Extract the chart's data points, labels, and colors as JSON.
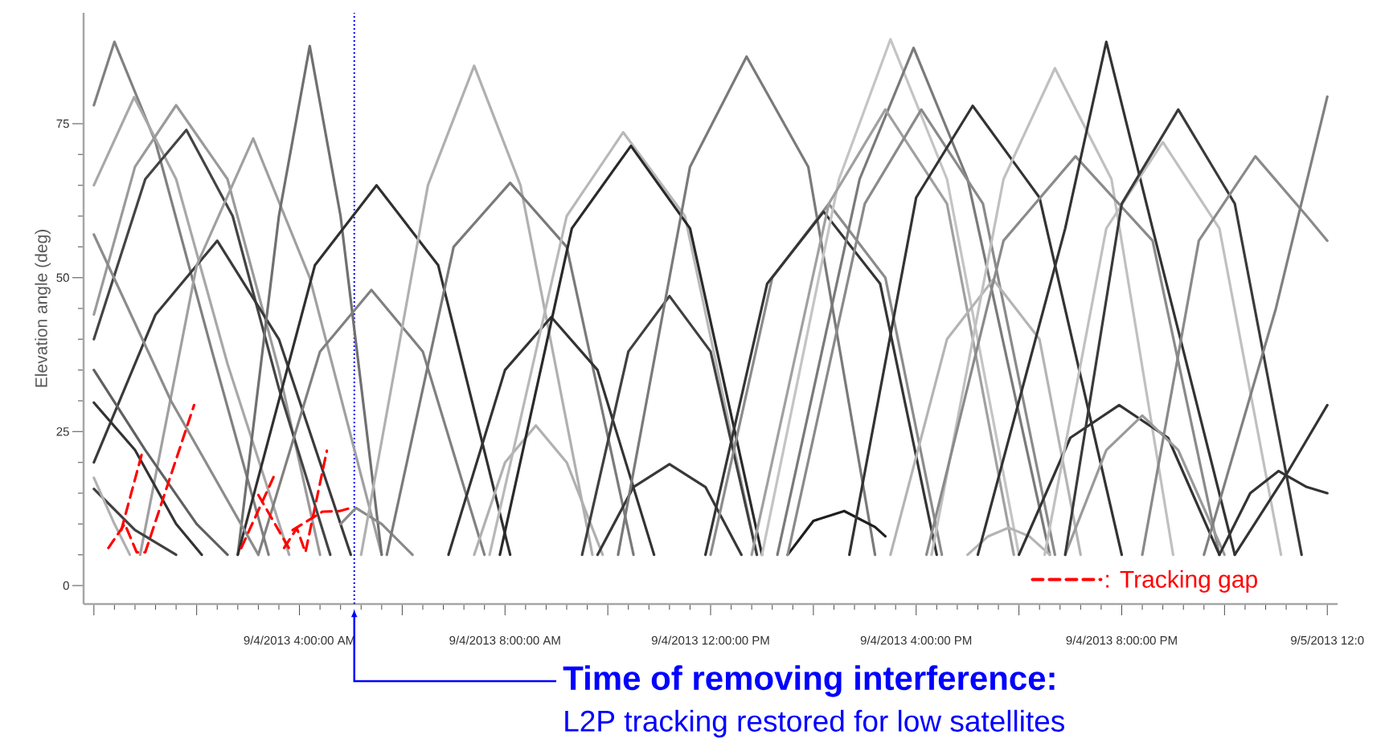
{
  "chart_data": {
    "type": "line",
    "ylabel": "Elevation angle (deg)",
    "xlim": [
      "2013-09-03T23:48",
      "2013-09-05T00:12"
    ],
    "ylim": [
      -3,
      93
    ],
    "xticks": [
      {
        "value": "2013-09-04T00:00",
        "label": null
      },
      {
        "value": "2013-09-04T02:00",
        "label": null
      },
      {
        "value": "2013-09-04T04:00",
        "label": "9/4/2013 4:00:00 AM"
      },
      {
        "value": "2013-09-04T06:00",
        "label": null
      },
      {
        "value": "2013-09-04T08:00",
        "label": "9/4/2013 8:00:00 AM"
      },
      {
        "value": "2013-09-04T10:00",
        "label": null
      },
      {
        "value": "2013-09-04T12:00",
        "label": "9/4/2013 12:00:00 PM"
      },
      {
        "value": "2013-09-04T14:00",
        "label": null
      },
      {
        "value": "2013-09-04T16:00",
        "label": "9/4/2013 4:00:00 PM"
      },
      {
        "value": "2013-09-04T18:00",
        "label": null
      },
      {
        "value": "2013-09-04T20:00",
        "label": "9/4/2013 8:00:00 PM"
      },
      {
        "value": "2013-09-04T22:00",
        "label": null
      },
      {
        "value": "2013-09-05T00:00",
        "label": "9/5/2013 12:0"
      }
    ],
    "yticks": [
      0,
      25,
      50,
      75
    ],
    "legend": "bottom right",
    "line_style": "solid",
    "ref_lines": [
      {
        "axis": "x",
        "value": "2013-09-04T05:04",
        "color": "#0000ff",
        "line_style": "dotted"
      }
    ],
    "annotations": [
      "Time of removing interference:",
      "L2P tracking restored for low satellites"
    ],
    "series": [
      {
        "color": "#808080",
        "x": [
          "2013-09-04T00:00",
          "2013-09-04T00:24",
          "2013-09-04T01:12",
          "2013-09-04T02:18",
          "2013-09-04T03:24"
        ],
        "values": [
          78,
          88.3,
          72,
          38,
          5
        ]
      },
      {
        "color": "#a8a8a8",
        "x": [
          "2013-09-04T00:00",
          "2013-09-04T00:47",
          "2013-09-04T01:36",
          "2013-09-04T02:36",
          "2013-09-04T03:48"
        ],
        "values": [
          65,
          79.3,
          66,
          36,
          5
        ]
      },
      {
        "color": "#9a9a9a",
        "x": [
          "2013-09-04T00:00",
          "2013-09-04T00:48",
          "2013-09-04T01:36",
          "2013-09-04T02:36",
          "2013-09-04T03:36",
          "2013-09-04T04:24"
        ],
        "values": [
          44,
          68,
          78,
          66,
          35,
          5
        ]
      },
      {
        "color": "#444444",
        "x": [
          "2013-09-04T00:00",
          "2013-09-04T01:00",
          "2013-09-04T01:48",
          "2013-09-04T02:42",
          "2013-09-04T03:36",
          "2013-09-04T04:36"
        ],
        "values": [
          40,
          66,
          74,
          60,
          32,
          5
        ]
      },
      {
        "color": "#3a3a3a",
        "x": [
          "2013-09-04T00:00",
          "2013-09-04T01:12",
          "2013-09-04T02:24",
          "2013-09-04T03:36",
          "2013-09-04T05:00"
        ],
        "values": [
          20,
          44,
          56,
          40,
          5
        ]
      },
      {
        "color": "#a0a0a0",
        "x": [
          "2013-09-04T00:54",
          "2013-09-04T02:00",
          "2013-09-04T03:06",
          "2013-09-04T04:12",
          "2013-09-04T05:36"
        ],
        "values": [
          5,
          52,
          72.6,
          50,
          5
        ]
      },
      {
        "color": "#707070",
        "x": [
          "2013-09-04T02:48",
          "2013-09-04T03:36",
          "2013-09-04T04:12",
          "2013-09-04T04:48",
          "2013-09-04T05:36"
        ],
        "values": [
          5,
          60,
          87.6,
          60,
          5
        ]
      },
      {
        "color": "#303030",
        "x": [
          "2013-09-04T02:48",
          "2013-09-04T04:18",
          "2013-09-04T05:30",
          "2013-09-04T06:42",
          "2013-09-04T08:06"
        ],
        "values": [
          5,
          52,
          65,
          52,
          5
        ]
      },
      {
        "color": "#808080",
        "x": [
          "2013-09-04T03:12",
          "2013-09-04T04:24",
          "2013-09-04T05:24",
          "2013-09-04T06:24",
          "2013-09-04T07:36"
        ],
        "values": [
          5,
          38,
          48,
          38,
          5
        ]
      },
      {
        "color": "#8a8a8a",
        "x": [
          "2013-09-04T04:48",
          "2013-09-04T05:06",
          "2013-09-04T05:36",
          "2013-09-04T06:12"
        ],
        "values": [
          10,
          12.6,
          10,
          5
        ]
      },
      {
        "color": "#333333",
        "x": [
          "2013-09-04T00:00",
          "2013-09-04T00:48",
          "2013-09-04T01:36",
          "2013-09-04T02:06"
        ],
        "values": [
          29.7,
          22,
          10,
          5
        ]
      },
      {
        "color": "#404040",
        "x": [
          "2013-09-04T00:00",
          "2013-09-04T00:48",
          "2013-09-04T01:36"
        ],
        "values": [
          15.7,
          9,
          5
        ]
      },
      {
        "color": "#606060",
        "x": [
          "2013-09-04T00:00",
          "2013-09-04T01:00",
          "2013-09-04T02:00",
          "2013-09-04T02:36"
        ],
        "values": [
          35,
          22,
          10,
          5
        ]
      },
      {
        "color": "#b0b0b0",
        "x": [
          "2013-09-04T00:00",
          "2013-09-04T00:24",
          "2013-09-04T00:42"
        ],
        "values": [
          17.5,
          10,
          5
        ]
      },
      {
        "color": "#8c8c8c",
        "x": [
          "2013-09-04T00:00",
          "2013-09-04T01:30",
          "2013-09-04T03:12"
        ],
        "values": [
          57,
          30,
          5
        ]
      },
      {
        "color": "#b0b0b0",
        "x": [
          "2013-09-04T05:12",
          "2013-09-04T06:30",
          "2013-09-04T07:24",
          "2013-09-04T08:18",
          "2013-09-04T09:42"
        ],
        "values": [
          5,
          65,
          84.4,
          65,
          5
        ]
      },
      {
        "color": "#7a7a7a",
        "x": [
          "2013-09-04T05:42",
          "2013-09-04T07:00",
          "2013-09-04T08:06",
          "2013-09-04T09:12",
          "2013-09-04T10:30"
        ],
        "values": [
          5,
          55,
          65.4,
          55,
          5
        ]
      },
      {
        "color": "#333333",
        "x": [
          "2013-09-04T06:54",
          "2013-09-04T08:00",
          "2013-09-04T08:54",
          "2013-09-04T09:48",
          "2013-09-04T10:54"
        ],
        "values": [
          5,
          35,
          43.6,
          35,
          5
        ]
      },
      {
        "color": "#b0b0b0",
        "x": [
          "2013-09-04T07:24",
          "2013-09-04T08:00",
          "2013-09-04T08:36",
          "2013-09-04T09:12",
          "2013-09-04T09:54"
        ],
        "values": [
          5,
          20,
          26,
          20,
          5
        ]
      },
      {
        "color": "#b8b8b8",
        "x": [
          "2013-09-04T07:42",
          "2013-09-04T09:12",
          "2013-09-04T10:18",
          "2013-09-04T11:30",
          "2013-09-04T12:54"
        ],
        "values": [
          5,
          60,
          73.6,
          60,
          5
        ]
      },
      {
        "color": "#2a2a2a",
        "x": [
          "2013-09-04T07:54",
          "2013-09-04T09:18",
          "2013-09-04T10:27",
          "2013-09-04T11:36",
          "2013-09-04T13:00"
        ],
        "values": [
          5,
          58,
          71.4,
          58,
          5
        ]
      },
      {
        "color": "#404040",
        "x": [
          "2013-09-04T09:30",
          "2013-09-04T10:24",
          "2013-09-04T11:12",
          "2013-09-04T12:00",
          "2013-09-04T12:54"
        ],
        "values": [
          5,
          38,
          47,
          38,
          5
        ]
      },
      {
        "color": "#383838",
        "x": [
          "2013-09-04T09:48",
          "2013-09-04T10:30",
          "2013-09-04T11:12",
          "2013-09-04T11:54",
          "2013-09-04T12:36"
        ],
        "values": [
          5,
          16,
          19.7,
          16,
          5
        ]
      },
      {
        "color": "#7a7a7a",
        "x": [
          "2013-09-04T10:12",
          "2013-09-04T11:36",
          "2013-09-04T12:42",
          "2013-09-04T13:54",
          "2013-09-04T15:12"
        ],
        "values": [
          5,
          68,
          85.9,
          68,
          5
        ]
      },
      {
        "color": "#8c8c8c",
        "x": [
          "2013-09-04T12:00",
          "2013-09-04T13:12",
          "2013-09-04T14:18",
          "2013-09-04T15:24",
          "2013-09-04T16:30"
        ],
        "values": [
          5,
          50,
          62,
          50,
          5
        ]
      },
      {
        "color": "#353535",
        "x": [
          "2013-09-04T11:54",
          "2013-09-04T13:06",
          "2013-09-04T14:12",
          "2013-09-04T15:18",
          "2013-09-04T16:24"
        ],
        "values": [
          5,
          49,
          60.7,
          49,
          5
        ]
      },
      {
        "color": "#1e1e1e",
        "x": [
          "2013-09-04T13:30",
          "2013-09-04T14:00",
          "2013-09-04T14:36",
          "2013-09-04T15:12",
          "2013-09-04T15:24"
        ],
        "values": [
          5,
          10.5,
          12.1,
          9.5,
          8
        ]
      },
      {
        "color": "#c4c4c4",
        "x": [
          "2013-09-04T13:00",
          "2013-09-04T14:30",
          "2013-09-04T15:30",
          "2013-09-04T16:36",
          "2013-09-04T18:00"
        ],
        "values": [
          5,
          66,
          88.7,
          66,
          5
        ]
      },
      {
        "color": "#7a7a7a",
        "x": [
          "2013-09-04T13:18",
          "2013-09-04T14:54",
          "2013-09-04T15:57",
          "2013-09-04T17:00",
          "2013-09-04T18:36"
        ],
        "values": [
          5,
          66,
          87.3,
          66,
          5
        ]
      },
      {
        "color": "#a0a0a0",
        "x": [
          "2013-09-04T12:48",
          "2013-09-04T14:18",
          "2013-09-04T15:24",
          "2013-09-04T16:36",
          "2013-09-04T17:54"
        ],
        "values": [
          5,
          62,
          77.3,
          62,
          5
        ]
      },
      {
        "color": "#8a8a8a",
        "x": [
          "2013-09-04T13:30",
          "2013-09-04T15:00",
          "2013-09-04T16:06",
          "2013-09-04T17:18",
          "2013-09-04T18:42"
        ],
        "values": [
          5,
          62,
          77.3,
          62,
          5
        ]
      },
      {
        "color": "#333333",
        "x": [
          "2013-09-04T14:42",
          "2013-09-04T16:00",
          "2013-09-04T17:06",
          "2013-09-04T18:24",
          "2013-09-04T20:00"
        ],
        "values": [
          5,
          63,
          77.9,
          63,
          5
        ]
      },
      {
        "color": "#b4b4b4",
        "x": [
          "2013-09-04T15:30",
          "2013-09-04T16:36",
          "2013-09-04T17:30",
          "2013-09-04T18:24",
          "2013-09-04T19:12"
        ],
        "values": [
          5,
          40,
          49.7,
          40,
          5
        ]
      },
      {
        "color": "#b4b4b4",
        "x": [
          "2013-09-04T17:00",
          "2013-09-04T17:24",
          "2013-09-04T17:48",
          "2013-09-04T18:12",
          "2013-09-04T18:36"
        ],
        "values": [
          5,
          8,
          9.4,
          8,
          5
        ]
      },
      {
        "color": "#c0c0c0",
        "x": [
          "2013-09-04T16:18",
          "2013-09-04T17:42",
          "2013-09-04T18:42",
          "2013-09-04T19:48",
          "2013-09-04T21:00"
        ],
        "values": [
          5,
          66,
          84,
          66,
          5
        ]
      },
      {
        "color": "#8a8a8a",
        "x": [
          "2013-09-04T16:12",
          "2013-09-04T17:42",
          "2013-09-04T19:06",
          "2013-09-04T20:36",
          "2013-09-04T21:54"
        ],
        "values": [
          5,
          56,
          69.7,
          56,
          5
        ]
      },
      {
        "color": "#333333",
        "x": [
          "2013-09-04T17:12",
          "2013-09-04T18:54",
          "2013-09-04T19:42",
          "2013-09-04T20:36",
          "2013-09-04T22:12"
        ],
        "values": [
          5,
          58,
          88.3,
          58,
          5
        ]
      },
      {
        "color": "#333333",
        "x": [
          "2013-09-04T18:00",
          "2013-09-04T19:00",
          "2013-09-04T19:57",
          "2013-09-04T20:54",
          "2013-09-04T21:54"
        ],
        "values": [
          5,
          24,
          29.3,
          24,
          5
        ]
      },
      {
        "color": "#9a9a9a",
        "x": [
          "2013-09-04T18:54",
          "2013-09-04T19:42",
          "2013-09-04T20:24",
          "2013-09-04T21:06",
          "2013-09-04T22:00"
        ],
        "values": [
          5,
          22,
          27.6,
          22,
          5
        ]
      },
      {
        "color": "#c0c0c0",
        "x": [
          "2013-09-04T18:30",
          "2013-09-04T19:42",
          "2013-09-04T20:48",
          "2013-09-04T21:54",
          "2013-09-04T23:06"
        ],
        "values": [
          5,
          58,
          72,
          58,
          5
        ]
      },
      {
        "color": "#3a3a3a",
        "x": [
          "2013-09-04T18:54",
          "2013-09-04T20:00",
          "2013-09-04T21:06",
          "2013-09-04T22:12",
          "2013-09-04T23:30"
        ],
        "values": [
          5,
          62,
          77.3,
          62,
          5
        ]
      },
      {
        "color": "#8a8a8a",
        "x": [
          "2013-09-04T20:24",
          "2013-09-04T21:30",
          "2013-09-04T22:36",
          "2013-09-04T23:36",
          "2013-09-05T00:00"
        ],
        "values": [
          5,
          56,
          69.7,
          60,
          56
        ]
      },
      {
        "color": "#333333",
        "x": [
          "2013-09-04T21:54",
          "2013-09-04T22:30",
          "2013-09-04T23:03",
          "2013-09-04T23:36",
          "2013-09-05T00:00"
        ],
        "values": [
          5,
          15,
          18.6,
          16,
          15
        ]
      },
      {
        "color": "#333333",
        "x": [
          "2013-09-04T22:12",
          "2013-09-04T23:12",
          "2013-09-05T00:00"
        ],
        "values": [
          5,
          18,
          29.3
        ]
      },
      {
        "color": "#808080",
        "x": [
          "2013-09-04T21:36",
          "2013-09-04T23:00",
          "2013-09-05T00:00"
        ],
        "values": [
          5,
          45,
          79.4
        ]
      },
      {
        "name": ": Tracking gap",
        "color": "#ff0000",
        "line_style": "dashed",
        "x": [
          "2013-09-04T00:17",
          "2013-09-04T00:36",
          "2013-09-04T00:50",
          "2013-09-04T01:00",
          "2013-09-04T01:57"
        ],
        "values": [
          6.1,
          10,
          5.4,
          5.4,
          29.3
        ]
      },
      {
        "color": "#ff0000",
        "line_style": "dashed",
        "x": [
          "2013-09-04T00:32",
          "2013-09-04T00:57"
        ],
        "values": [
          9,
          21.9
        ]
      },
      {
        "color": "#ff0000",
        "line_style": "dashed",
        "x": [
          "2013-09-04T02:52",
          "2013-09-04T03:32"
        ],
        "values": [
          6.1,
          18.3
        ]
      },
      {
        "color": "#ff0000",
        "line_style": "dashed",
        "x": [
          "2013-09-04T03:42",
          "2013-09-04T03:57",
          "2013-09-04T04:07",
          "2013-09-04T04:32"
        ],
        "values": [
          6.1,
          9.3,
          5.4,
          21.9
        ]
      },
      {
        "color": "#ff0000",
        "line_style": "dashed",
        "x": [
          "2013-09-04T03:12",
          "2013-09-04T03:48"
        ],
        "values": [
          14.7,
          6
        ]
      },
      {
        "color": "#ff0000",
        "line_style": "dashed",
        "x": [
          "2013-09-04T03:52",
          "2013-09-04T04:27",
          "2013-09-04T04:47",
          "2013-09-04T05:00"
        ],
        "values": [
          9,
          12,
          12.1,
          12.6
        ]
      }
    ]
  }
}
